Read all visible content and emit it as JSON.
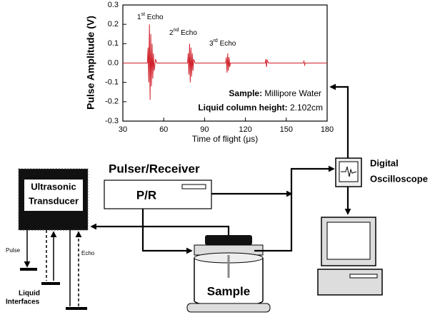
{
  "chart_data": {
    "type": "line",
    "x_label": "Time of flight (μs)",
    "y_label": "Pulse Amplitude (V)",
    "x": [
      30,
      45,
      48,
      48.5,
      49,
      49.5,
      50,
      50.5,
      51,
      51.5,
      52,
      52.5,
      53,
      54,
      55,
      60,
      77.5,
      78,
      78.5,
      79,
      79.5,
      80,
      80.5,
      81,
      81.5,
      82,
      83,
      90,
      105.5,
      106,
      106.5,
      107,
      107.5,
      108,
      108.5,
      109,
      120,
      134.5,
      135,
      135.5,
      136,
      137,
      150,
      162.5,
      163,
      163.5,
      164,
      180
    ],
    "values": [
      0,
      0,
      0,
      0.08,
      -0.1,
      0.2,
      -0.19,
      0.15,
      -0.12,
      0.1,
      -0.08,
      0.05,
      -0.04,
      0.02,
      0,
      0,
      0,
      0.05,
      -0.06,
      0.1,
      -0.1,
      0.08,
      -0.07,
      0.05,
      -0.04,
      0.02,
      0,
      0,
      0,
      0.03,
      -0.05,
      0.05,
      -0.04,
      0.03,
      -0.02,
      0,
      0,
      0,
      0.02,
      -0.02,
      0.015,
      0,
      0,
      0,
      0.01,
      -0.01,
      0,
      0
    ],
    "color": "#d0202a",
    "xlim": [
      30,
      180
    ],
    "xticks": [
      30,
      60,
      90,
      120,
      150,
      180
    ],
    "ylim": [
      -0.3,
      0.3
    ],
    "yticks": [
      -0.3,
      -0.2,
      -0.1,
      {
        "value": 0,
        "label": "0.0"
      },
      0.1,
      0.2,
      0.3
    ],
    "annotations": [
      {
        "number": "1",
        "suffix": "st",
        "text": " Echo"
      },
      {
        "number": "2",
        "suffix": "nd",
        "text": " Echo"
      },
      {
        "number": "3",
        "suffix": "rd",
        "text": " Echo"
      }
    ],
    "sample_label": "Sample:",
    "sample_value": " Millipore Water",
    "height_label": "Liquid column height:",
    "height_value": " 2.102cm"
  },
  "diagram": {
    "pulser_title": "Pulser/Receiver",
    "pulser_box": "P/R",
    "transducer": [
      "Ultrasonic",
      "Transducer"
    ],
    "oscilloscope": [
      "Digital",
      "Oscilloscope"
    ],
    "sample": "Sample",
    "pulse": "Pulse",
    "echo": "Echo",
    "interfaces": [
      "Liquid",
      "Interfaces"
    ]
  }
}
